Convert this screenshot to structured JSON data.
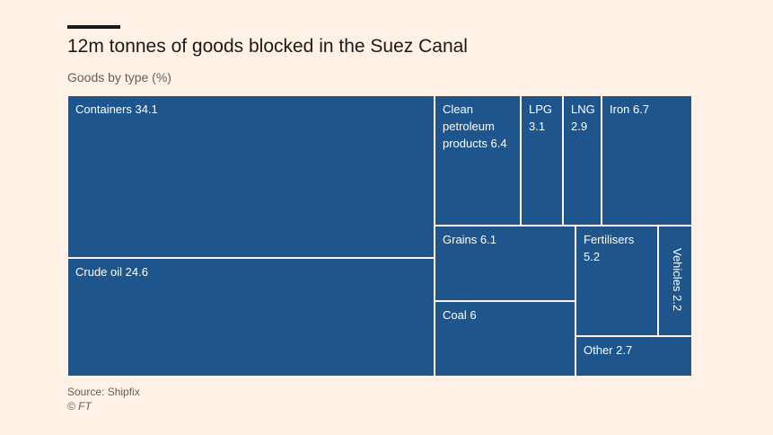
{
  "header": {
    "title": "12m tonnes of goods blocked in the Suez Canal",
    "subtitle": "Goods by type (%)"
  },
  "footer": {
    "source": "Source: Shipfix",
    "copyright": "© FT"
  },
  "colors": {
    "background": "#fff1e5",
    "cell_fill": "#1e558c",
    "cell_border": "#fff1e5",
    "cell_text": "#ffffff"
  },
  "chart_data": {
    "type": "treemap",
    "title": "12m tonnes of goods blocked in the Suez Canal",
    "subtitle": "Goods by type (%)",
    "unit": "%",
    "items": [
      {
        "name": "Containers",
        "value": 34.1,
        "label": "Containers 34.1"
      },
      {
        "name": "Crude oil",
        "value": 24.6,
        "label": "Crude oil 24.6"
      },
      {
        "name": "Clean petroleum products",
        "value": 6.4,
        "label": "Clean\npetroleum\nproducts 6.4"
      },
      {
        "name": "LPG",
        "value": 3.1,
        "label": "LPG\n3.1"
      },
      {
        "name": "LNG",
        "value": 2.9,
        "label": "LNG\n2.9"
      },
      {
        "name": "Iron",
        "value": 6.7,
        "label": "Iron 6.7"
      },
      {
        "name": "Grains",
        "value": 6.1,
        "label": "Grains 6.1"
      },
      {
        "name": "Fertilisers",
        "value": 5.2,
        "label": "Fertilisers\n5.2"
      },
      {
        "name": "Vehicles",
        "value": 2.2,
        "label": "Vehicles 2.2"
      },
      {
        "name": "Coal",
        "value": 6,
        "label": "Coal 6"
      },
      {
        "name": "Other",
        "value": 2.7,
        "label": "Other 2.7"
      }
    ]
  }
}
